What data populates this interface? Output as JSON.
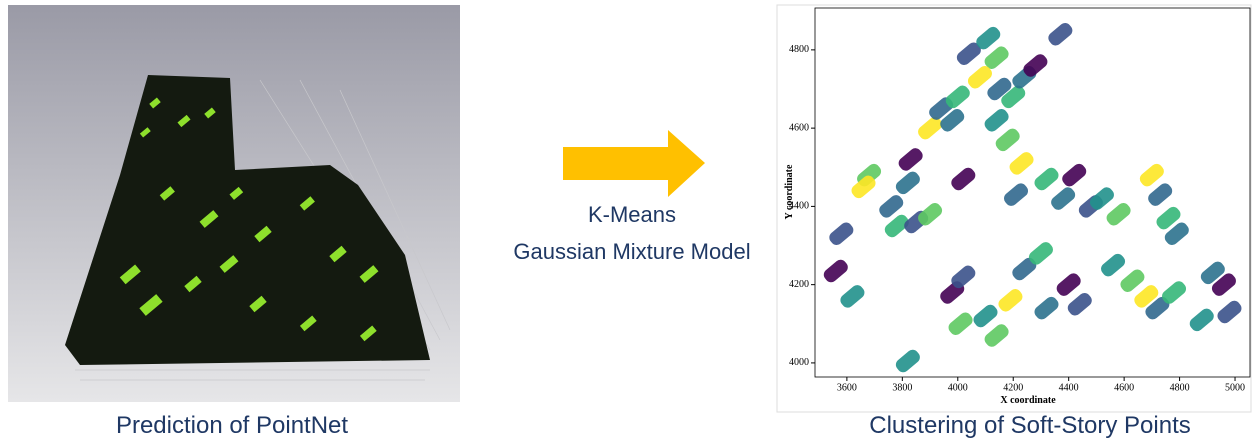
{
  "left_panel": {
    "caption": "Prediction of PointNet"
  },
  "arrow": {
    "labels": [
      "K-Means",
      "Gaussian Mixture Model"
    ]
  },
  "chart_data": {
    "type": "scatter",
    "x_label": "X coordinate",
    "y_label": "Y coordinate",
    "x": [
      3560,
      3580,
      3620,
      3680,
      3660,
      3760,
      3780,
      3820,
      3830,
      3850,
      3820,
      3900,
      3900,
      3940,
      4000,
      3980,
      4020,
      4040,
      4110,
      4140,
      4080,
      4150,
      4200,
      4240,
      4280,
      4370,
      4140,
      4180,
      4230,
      4210,
      4320,
      4380,
      4420,
      4480,
      4520,
      4580,
      4700,
      4730,
      4760,
      4790,
      3980,
      4020,
      4100,
      4140,
      4190,
      4240,
      4300,
      4320,
      4400,
      4440,
      4560,
      4630,
      4680,
      4720,
      4780,
      4920,
      4960,
      4980,
      4880,
      4010
    ],
    "values": [
      4235,
      4330,
      4170,
      4480,
      4450,
      4400,
      4350,
      4460,
      4520,
      4360,
      4005,
      4380,
      4600,
      4650,
      4680,
      4620,
      4470,
      4790,
      4830,
      4780,
      4730,
      4700,
      4680,
      4730,
      4760,
      4840,
      4620,
      4570,
      4510,
      4430,
      4470,
      4420,
      4480,
      4400,
      4420,
      4380,
      4480,
      4430,
      4370,
      4330,
      4180,
      4220,
      4120,
      4070,
      4160,
      4240,
      4280,
      4140,
      4200,
      4150,
      4250,
      4210,
      4170,
      4140,
      4180,
      4230,
      4200,
      4130,
      4110,
      4100
    ],
    "colors": [
      "#440154",
      "#3b528b",
      "#21918c",
      "#5ec962",
      "#fde725",
      "#31688e",
      "#35b779",
      "#2c728e",
      "#440154",
      "#3b528b",
      "#21918c",
      "#5ec962",
      "#fde725",
      "#31688e",
      "#35b779",
      "#2c728e",
      "#440154",
      "#3b528b",
      "#21918c",
      "#5ec962",
      "#fde725",
      "#31688e",
      "#35b779",
      "#2c728e",
      "#440154",
      "#3b528b",
      "#21918c",
      "#5ec962",
      "#fde725",
      "#31688e",
      "#35b779",
      "#2c728e",
      "#440154",
      "#3b528b",
      "#21918c",
      "#5ec962",
      "#fde725",
      "#31688e",
      "#35b779",
      "#2c728e",
      "#440154",
      "#3b528b",
      "#21918c",
      "#5ec962",
      "#fde725",
      "#31688e",
      "#35b779",
      "#2c728e",
      "#440154",
      "#3b528b",
      "#21918c",
      "#5ec962",
      "#fde725",
      "#31688e",
      "#35b779",
      "#2c728e",
      "#440154",
      "#3b528b",
      "#21918c",
      "#5ec962"
    ],
    "xlim": [
      3485,
      5054
    ],
    "ylim": [
      3964,
      4907
    ],
    "xticks": [
      3600,
      3800,
      4000,
      4200,
      4400,
      4600,
      4800,
      5000
    ],
    "yticks": [
      4000,
      4200,
      4400,
      4600,
      4800
    ]
  },
  "right_caption": "Clustering of Soft-Story Points"
}
